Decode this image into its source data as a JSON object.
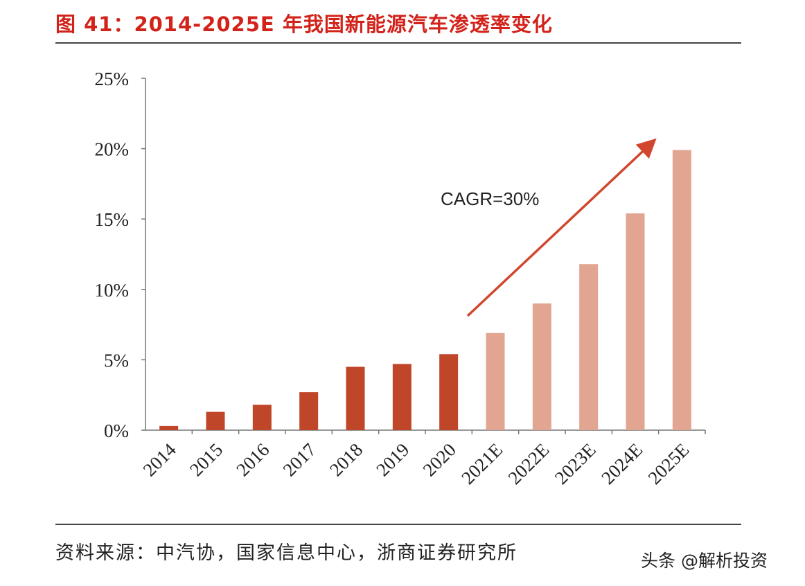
{
  "title": "图 41：2014-2025E 年我国新能源汽车渗透率变化",
  "source": "资料来源：中汽协，国家信息中心，浙商证券研究所",
  "watermark": "头条 @解析投资",
  "colors": {
    "title": "#d2231b",
    "actual": "#c0462a",
    "estimate": "#e2a591",
    "arrow": "#d0472e"
  },
  "chart_data": {
    "type": "bar",
    "title": "",
    "xlabel": "",
    "ylabel": "",
    "categories": [
      "2014",
      "2015",
      "2016",
      "2017",
      "2018",
      "2019",
      "2020",
      "2021E",
      "2022E",
      "2023E",
      "2024E",
      "2025E"
    ],
    "values": [
      0.3,
      1.3,
      1.8,
      2.7,
      4.5,
      4.7,
      5.4,
      6.9,
      9.0,
      11.8,
      15.4,
      19.9
    ],
    "estimated": [
      false,
      false,
      false,
      false,
      false,
      false,
      false,
      true,
      true,
      true,
      true,
      true
    ],
    "ylim": [
      0,
      25
    ],
    "yticks": [
      "0%",
      "5%",
      "10%",
      "15%",
      "20%",
      "25%"
    ],
    "grid": false,
    "annotation": "CAGR=30%"
  }
}
